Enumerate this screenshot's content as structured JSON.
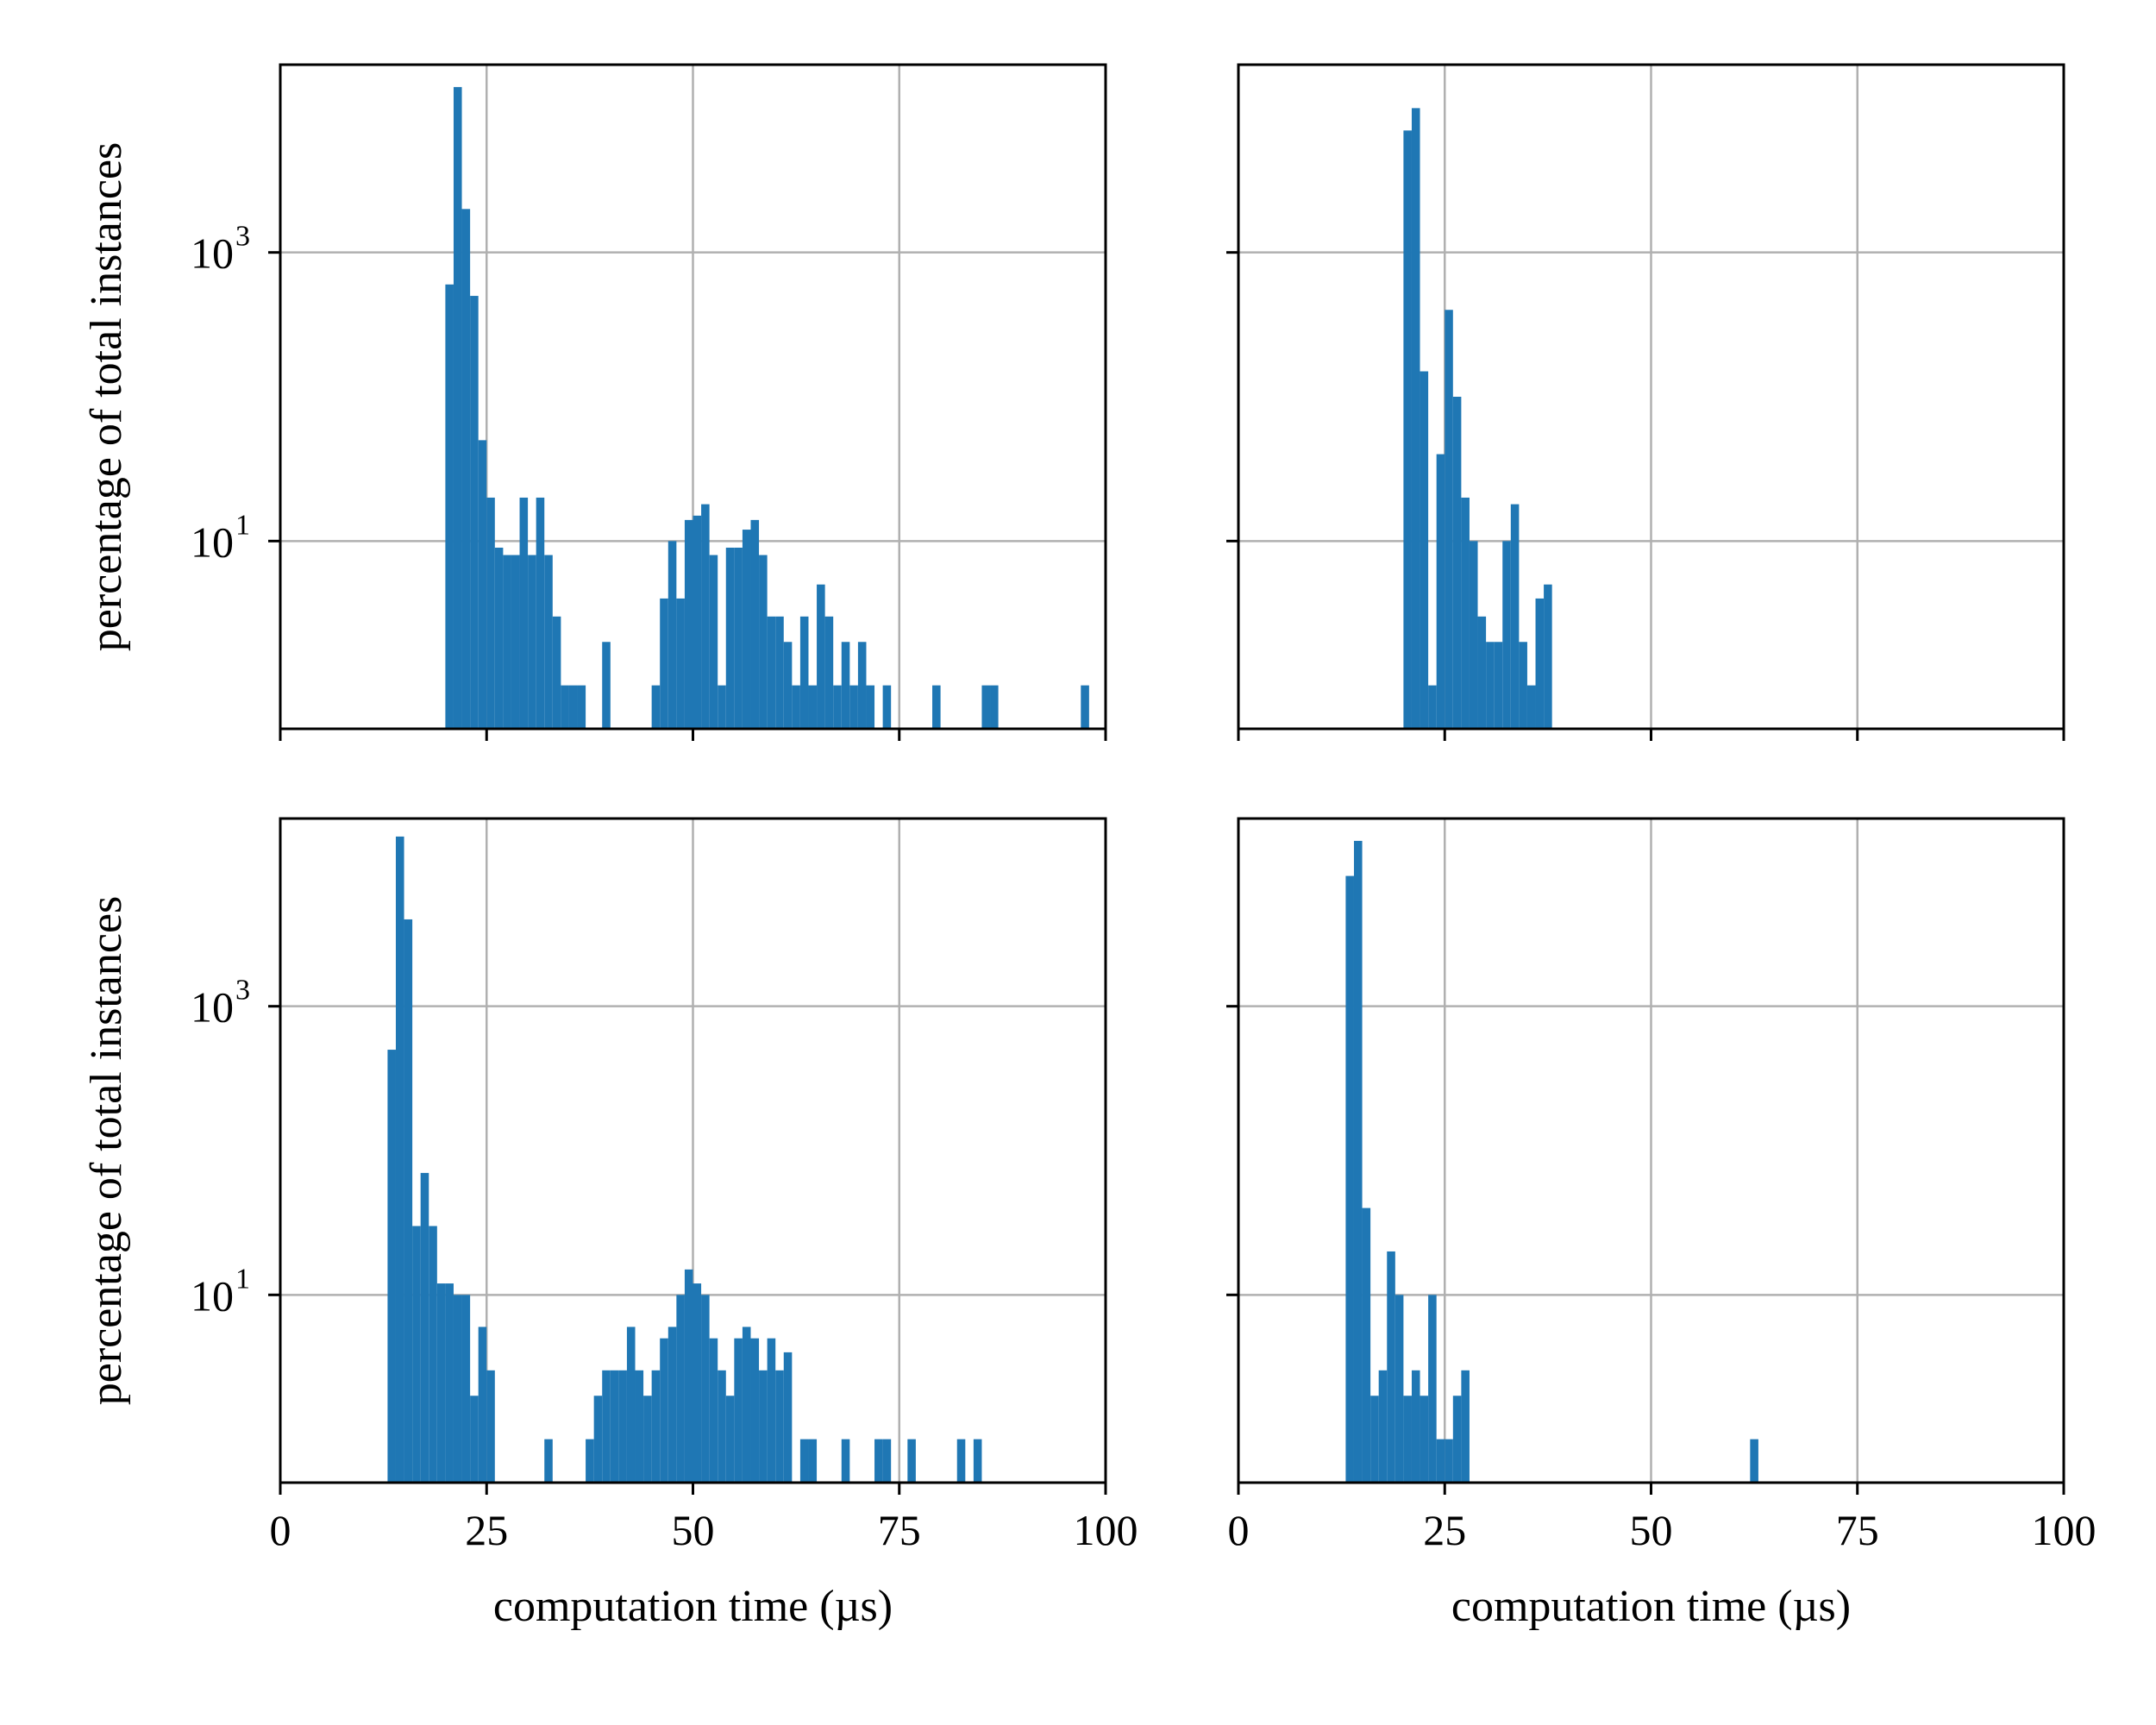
{
  "colors": {
    "bar": "#1f77b4",
    "grid": "#b0b0b0",
    "axes": "#000000",
    "background": "#ffffff"
  },
  "chart_data": [
    {
      "type": "bar",
      "panel": "top-left",
      "bin_width": 1,
      "xlabel": "",
      "ylabel": "percentage of total instances",
      "xlim": [
        0,
        100
      ],
      "ylim": [
        0.5,
        20000
      ],
      "yscale": "log",
      "grid": true,
      "xticks": [
        0,
        25,
        50,
        75,
        100
      ],
      "xtick_labels": [
        "",
        "",
        "",
        "",
        ""
      ],
      "yticks": [
        {
          "value": 1000,
          "base": "10",
          "exp": "3"
        },
        {
          "value": 10,
          "base": "10",
          "exp": "1"
        }
      ],
      "x": [
        20,
        21,
        22,
        23,
        24,
        25,
        26,
        27,
        28,
        29,
        30,
        31,
        32,
        33,
        34,
        35,
        36,
        39,
        45,
        46,
        47,
        48,
        49,
        50,
        51,
        52,
        53,
        54,
        55,
        56,
        57,
        58,
        59,
        60,
        61,
        62,
        63,
        64,
        65,
        66,
        67,
        68,
        69,
        70,
        71,
        73,
        79,
        85,
        86,
        97
      ],
      "values": [
        600,
        14000,
        2000,
        500,
        50,
        20,
        9,
        8,
        8,
        20,
        8,
        20,
        8,
        3,
        1,
        1,
        1,
        2,
        1,
        4,
        10,
        4,
        14,
        15,
        18,
        8,
        1,
        9,
        9,
        12,
        14,
        8,
        3,
        3,
        2,
        1,
        3,
        1,
        5,
        3,
        1,
        2,
        1,
        2,
        1,
        1,
        1,
        1,
        1,
        1
      ]
    },
    {
      "type": "bar",
      "panel": "top-right",
      "bin_width": 1,
      "xlabel": "",
      "ylabel": "",
      "xlim": [
        0,
        100
      ],
      "ylim": [
        0.5,
        20000
      ],
      "yscale": "log",
      "grid": true,
      "xticks": [
        0,
        25,
        50,
        75,
        100
      ],
      "xtick_labels": [
        "",
        "",
        "",
        "",
        ""
      ],
      "yticks": [
        {
          "value": 1000,
          "base": "",
          "exp": ""
        },
        {
          "value": 10,
          "base": "",
          "exp": ""
        }
      ],
      "x": [
        20,
        21,
        22,
        23,
        24,
        25,
        26,
        27,
        28,
        29,
        30,
        31,
        32,
        33,
        34,
        35,
        36,
        37
      ],
      "values": [
        7000,
        10000,
        150,
        1,
        40,
        400,
        100,
        20,
        10,
        3,
        2,
        2,
        10,
        18,
        2,
        1,
        4,
        5
      ]
    },
    {
      "type": "bar",
      "panel": "bottom-left",
      "bin_width": 1,
      "xlabel": "computation time (µs)",
      "ylabel": "percentage of total instances",
      "xlim": [
        0,
        100
      ],
      "ylim": [
        0.5,
        20000
      ],
      "yscale": "log",
      "grid": true,
      "xticks": [
        0,
        25,
        50,
        75,
        100
      ],
      "xtick_labels": [
        "0",
        "25",
        "50",
        "75",
        "100"
      ],
      "yticks": [
        {
          "value": 1000,
          "base": "10",
          "exp": "3"
        },
        {
          "value": 10,
          "base": "10",
          "exp": "1"
        }
      ],
      "x": [
        13,
        14,
        15,
        16,
        17,
        18,
        19,
        20,
        21,
        22,
        23,
        24,
        25,
        32,
        37,
        38,
        39,
        40,
        41,
        42,
        43,
        44,
        45,
        46,
        47,
        48,
        49,
        50,
        51,
        52,
        53,
        54,
        55,
        56,
        57,
        58,
        59,
        60,
        61,
        63,
        64,
        68,
        72,
        73,
        76,
        82,
        84
      ],
      "values": [
        500,
        15000,
        4000,
        30,
        70,
        30,
        12,
        12,
        10,
        10,
        2,
        6,
        3,
        1,
        1,
        2,
        3,
        3,
        3,
        6,
        3,
        2,
        3,
        5,
        6,
        10,
        15,
        12,
        10,
        5,
        3,
        2,
        5,
        6,
        5,
        3,
        5,
        3,
        4,
        1,
        1,
        1,
        1,
        1,
        1,
        1,
        1
      ]
    },
    {
      "type": "bar",
      "panel": "bottom-right",
      "bin_width": 1,
      "xlabel": "computation time (µs)",
      "ylabel": "",
      "xlim": [
        0,
        100
      ],
      "ylim": [
        0.5,
        20000
      ],
      "yscale": "log",
      "grid": true,
      "xticks": [
        0,
        25,
        50,
        75,
        100
      ],
      "xtick_labels": [
        "0",
        "25",
        "50",
        "75",
        "100"
      ],
      "yticks": [
        {
          "value": 1000,
          "base": "",
          "exp": ""
        },
        {
          "value": 10,
          "base": "",
          "exp": ""
        }
      ],
      "x": [
        13,
        14,
        15,
        16,
        17,
        18,
        19,
        20,
        21,
        22,
        23,
        24,
        25,
        26,
        27,
        62
      ],
      "values": [
        8000,
        14000,
        40,
        2,
        3,
        20,
        10,
        2,
        3,
        2,
        10,
        1,
        1,
        2,
        3,
        1
      ]
    }
  ]
}
